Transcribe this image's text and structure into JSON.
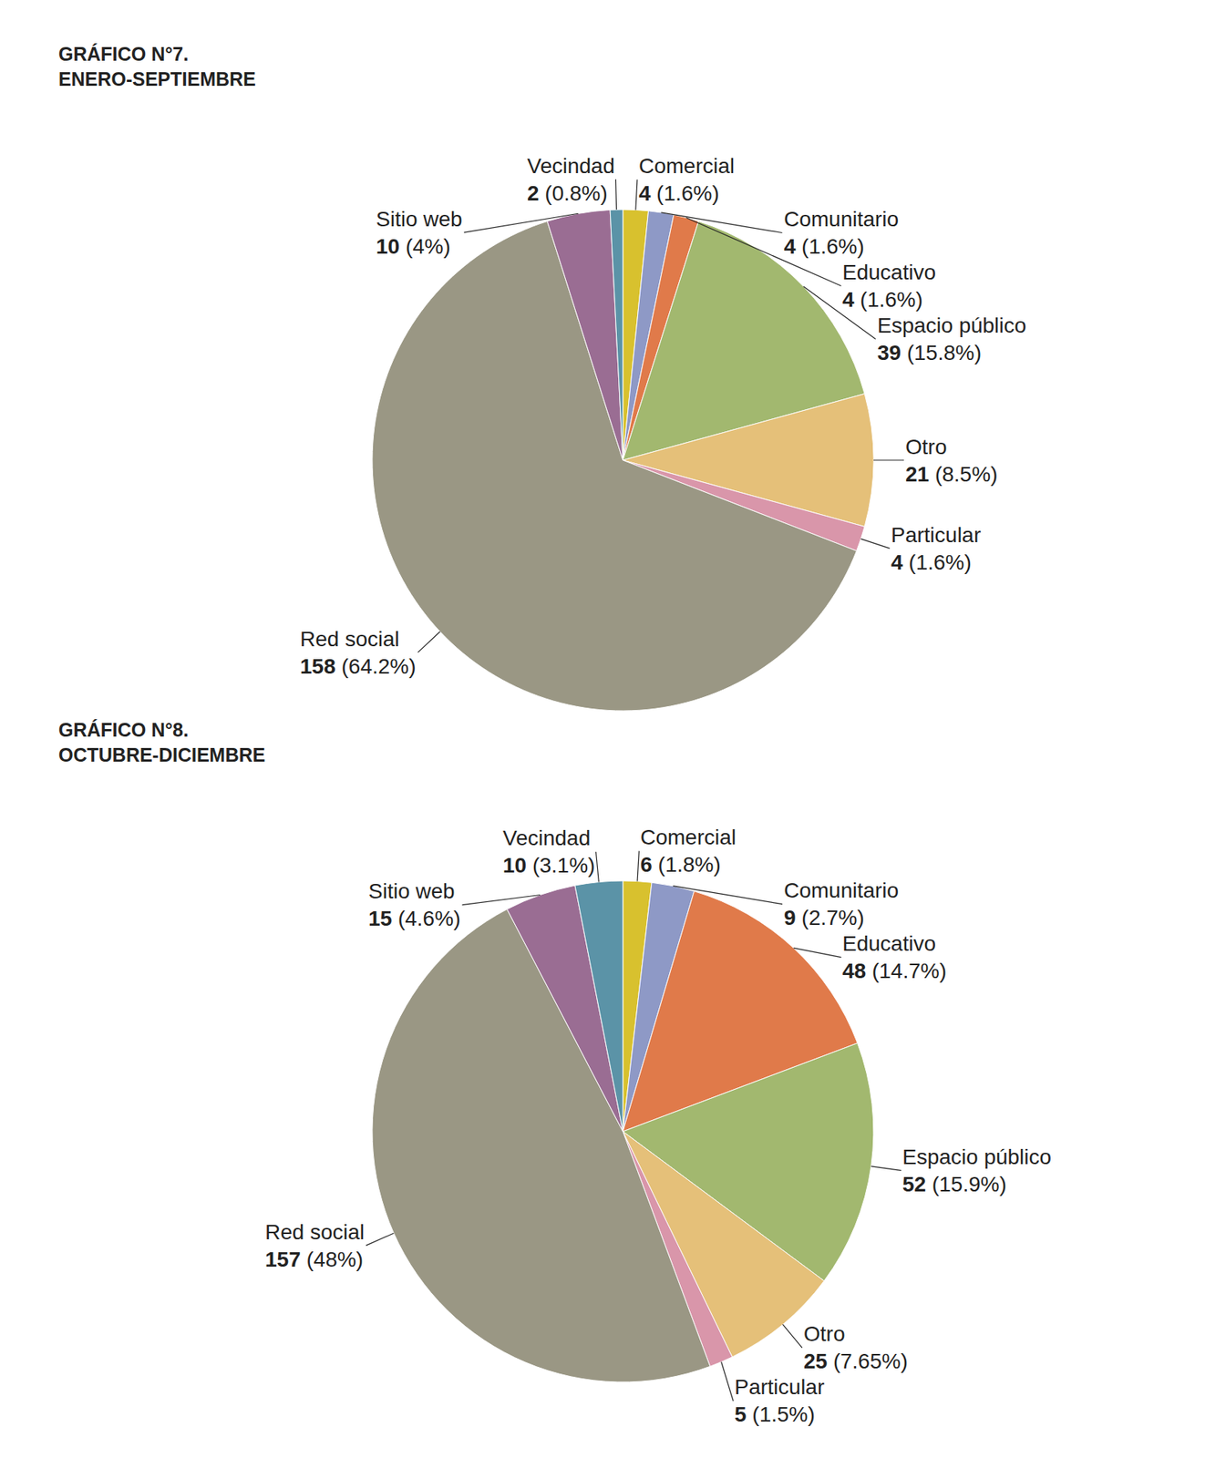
{
  "chart_data": [
    {
      "type": "pie",
      "title": "GRÁFICO N°7.",
      "subtitle": "ENERO-SEPTIEMBRE",
      "categories": [
        "Comercial",
        "Comunitario",
        "Educativo",
        "Espacio público",
        "Otro",
        "Particular",
        "Red social",
        "Sitio web",
        "Vecindad"
      ],
      "values": [
        4,
        4,
        4,
        39,
        21,
        4,
        158,
        10,
        2
      ],
      "value_labels": [
        "4 (1.6%)",
        "4 (1.6%)",
        "4 (1.6%)",
        "39 (15.8%)",
        "21 (8.5%)",
        "4 (1.6%)",
        "158 (64.2%)",
        "10 (4%)",
        "2 (0.8%)"
      ],
      "colors": [
        "#d8c12e",
        "#8e99c6",
        "#e07a4a",
        "#a2b86f",
        "#e5c079",
        "#d996aa",
        "#9a9784",
        "#9a6d93",
        "#5b93a7"
      ],
      "data_labels": true
    },
    {
      "type": "pie",
      "title": "GRÁFICO N°8.",
      "subtitle": "OCTUBRE-DICIEMBRE",
      "categories": [
        "Comercial",
        "Comunitario",
        "Educativo",
        "Espacio público",
        "Otro",
        "Particular",
        "Red social",
        "Sitio web",
        "Vecindad"
      ],
      "values": [
        6,
        9,
        48,
        52,
        25,
        5,
        157,
        15,
        10
      ],
      "value_labels": [
        "6 (1.8%)",
        "9 (2.7%)",
        "48 (14.7%)",
        "52 (15.9%)",
        "25 (7.65%)",
        "5 (1.5%)",
        "157 (48%)",
        "15 (4.6%)",
        "10 (3.1%)"
      ],
      "colors": [
        "#d8c12e",
        "#8e99c6",
        "#e07a4a",
        "#a2b86f",
        "#e5c079",
        "#d996aa",
        "#9a9784",
        "#9a6d93",
        "#5b93a7"
      ],
      "data_labels": true
    }
  ]
}
